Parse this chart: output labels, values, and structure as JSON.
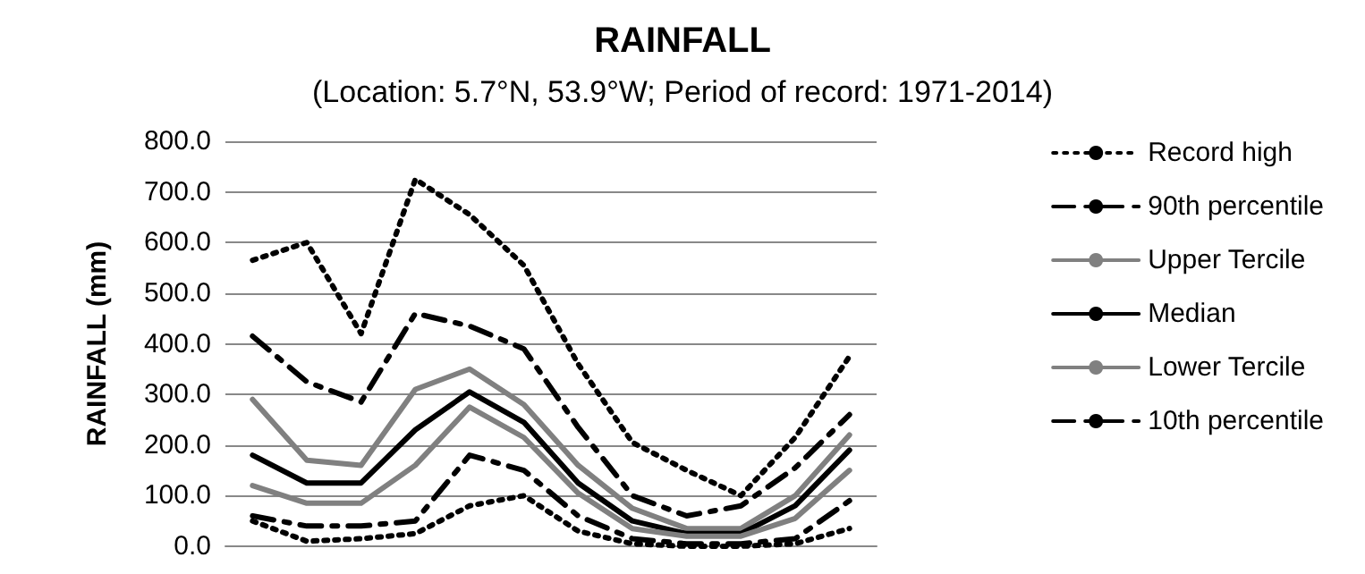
{
  "chart_data": {
    "type": "line",
    "title": "RAINFALL",
    "subtitle": "(Location: 5.7°N, 53.9°W; Period of record: 1971-2014)",
    "ylabel": "RAINFALL (mm)",
    "categories": [
      null,
      null,
      null,
      null,
      null,
      null,
      null,
      null,
      null,
      null,
      null,
      null
    ],
    "series": [
      {
        "name": "Record high",
        "color": "#000000",
        "line_style": "dotted",
        "values": [
          565,
          600,
          420,
          725,
          655,
          555,
          360,
          205,
          150,
          100,
          215,
          375
        ]
      },
      {
        "name": "90th percentile",
        "color": "#000000",
        "line_style": "dashed",
        "values": [
          415,
          325,
          285,
          460,
          435,
          390,
          235,
          100,
          60,
          80,
          155,
          260
        ]
      },
      {
        "name": "Upper Tercile",
        "color": "#808080",
        "line_style": "solid",
        "values": [
          290,
          170,
          160,
          310,
          350,
          280,
          160,
          75,
          35,
          35,
          100,
          220
        ]
      },
      {
        "name": "Median",
        "color": "#000000",
        "line_style": "solid",
        "values": [
          180,
          125,
          125,
          230,
          305,
          245,
          125,
          50,
          25,
          25,
          80,
          190
        ]
      },
      {
        "name": "Lower Tercile",
        "color": "#808080",
        "line_style": "solid",
        "values": [
          120,
          85,
          85,
          160,
          275,
          215,
          105,
          35,
          20,
          20,
          55,
          150
        ]
      },
      {
        "name": "10th percentile",
        "color": "#000000",
        "line_style": "dashed",
        "values": [
          60,
          40,
          40,
          50,
          180,
          150,
          60,
          15,
          5,
          5,
          15,
          90
        ]
      },
      {
        "color": "#000000",
        "line_style": "dotted",
        "values": [
          50,
          10,
          15,
          25,
          80,
          100,
          30,
          5,
          0,
          0,
          5,
          35
        ]
      }
    ],
    "ylim": [
      0,
      800
    ],
    "yticks": [
      {
        "value": 0,
        "label": "0.0"
      },
      {
        "value": 100,
        "label": "100.0"
      },
      {
        "value": 200,
        "label": "200.0"
      },
      {
        "value": 300,
        "label": "300.0"
      },
      {
        "value": 400,
        "label": "400.0"
      },
      {
        "value": 500,
        "label": "500.0"
      },
      {
        "value": 600,
        "label": "600.0"
      },
      {
        "value": 700,
        "label": "700.0"
      },
      {
        "value": 800,
        "label": "800.0"
      }
    ],
    "grid": "y",
    "legend": "right",
    "marker": "none",
    "tick_labels": "y"
  }
}
